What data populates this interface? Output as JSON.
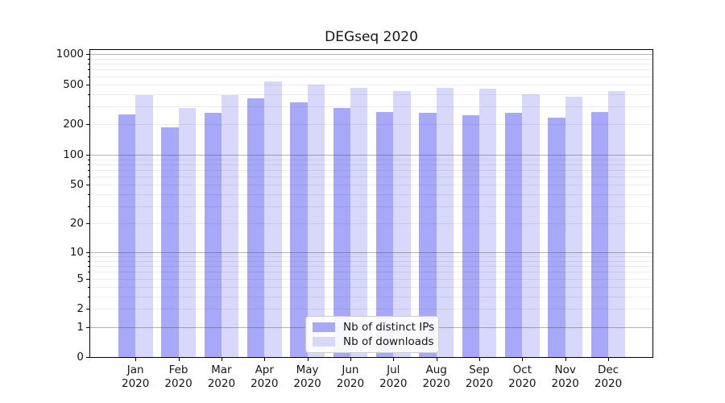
{
  "title": "DEGseq 2020",
  "chart_data": {
    "type": "bar",
    "title": "DEGseq 2020",
    "categories": [
      "Jan 2020",
      "Feb 2020",
      "Mar 2020",
      "Apr 2020",
      "May 2020",
      "Jun 2020",
      "Jul 2020",
      "Aug 2020",
      "Sep 2020",
      "Oct 2020",
      "Nov 2020",
      "Dec 2020"
    ],
    "x_tick_line1": [
      "Jan",
      "Feb",
      "Mar",
      "Apr",
      "May",
      "Jun",
      "Jul",
      "Aug",
      "Sep",
      "Oct",
      "Nov",
      "Dec"
    ],
    "x_tick_line2": "2020",
    "series": [
      {
        "name": "Nb of distinct IPs",
        "color": "#a8a8f8",
        "values": [
          250,
          186,
          261,
          367,
          329,
          293,
          266,
          259,
          245,
          262,
          232,
          267
        ]
      },
      {
        "name": "Nb of downloads",
        "color": "#d8d8fa",
        "values": [
          391,
          290,
          395,
          539,
          496,
          461,
          428,
          461,
          455,
          401,
          377,
          428
        ]
      }
    ],
    "yscale": "log1p",
    "ylabel": "",
    "xlabel": "",
    "ytick_values": [
      0,
      1,
      2,
      5,
      10,
      20,
      50,
      100,
      200,
      500,
      1000
    ],
    "ytick_labels": [
      "0",
      "1",
      "2",
      "5",
      "10",
      "20",
      "50",
      "100",
      "200",
      "500",
      "1000"
    ],
    "major_grid_values": [
      1,
      10,
      100,
      1000
    ],
    "minor_grid_values": [
      2,
      3,
      4,
      5,
      6,
      7,
      8,
      9,
      20,
      30,
      40,
      50,
      60,
      70,
      80,
      90,
      200,
      300,
      400,
      500,
      600,
      700,
      800,
      900
    ],
    "ylim": [
      0,
      1070
    ],
    "grid": true,
    "legend_position": "lower center inside"
  },
  "legend": {
    "items": [
      {
        "label": "Nb of distinct IPs",
        "color": "#a8a8f8"
      },
      {
        "label": "Nb of downloads",
        "color": "#d8d8fa"
      }
    ]
  },
  "colors": {
    "bar_dark": "#a8a8f8",
    "bar_light": "#d8d8fa",
    "spine": "#000000",
    "grid_major": "#9e9e9e",
    "grid_minor": "#ebebeb",
    "background": "#ffffff"
  }
}
